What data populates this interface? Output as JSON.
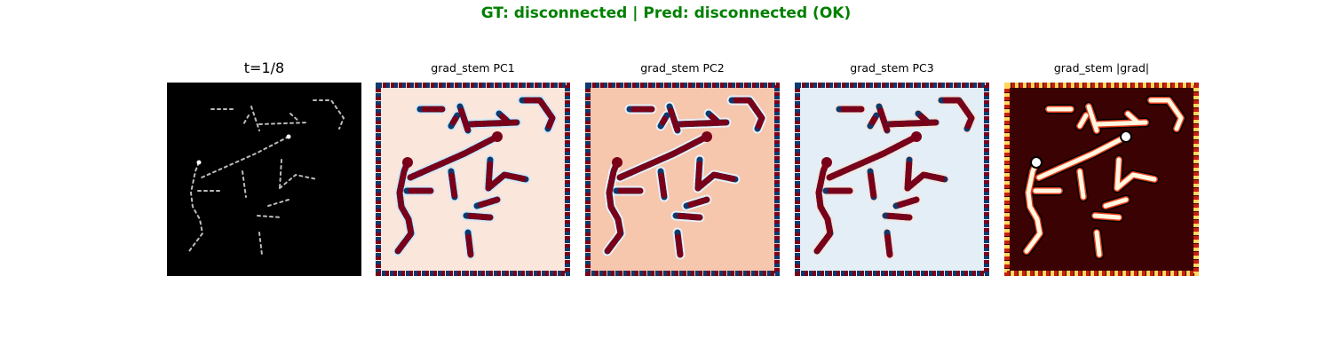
{
  "suptitle": "GT: disconnected | Pred: disconnected (OK)",
  "colors": {
    "suptitle": "#008000"
  },
  "panels": [
    {
      "title": "t=1/8",
      "kind": "input"
    },
    {
      "title": "grad_stem PC1",
      "kind": "pc-light"
    },
    {
      "title": "grad_stem PC2",
      "kind": "pc-warm"
    },
    {
      "title": "grad_stem PC3",
      "kind": "pc-blue"
    },
    {
      "title": "grad_stem |grad|",
      "kind": "magnitude"
    }
  ]
}
